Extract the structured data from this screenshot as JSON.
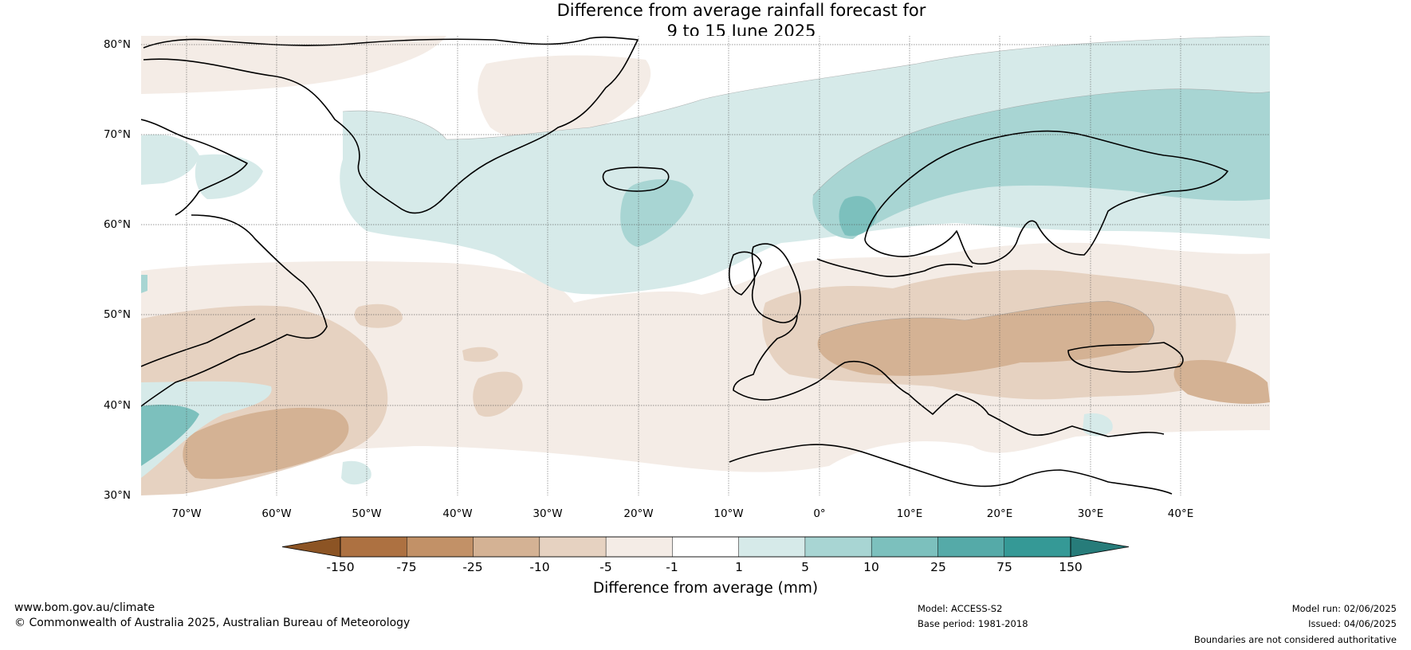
{
  "title": {
    "line1": "Difference from average rainfall forecast for",
    "line2": "9 to 15 June 2025"
  },
  "map": {
    "lat_labels": [
      "80°N",
      "70°N",
      "60°N",
      "50°N",
      "40°N",
      "30°N"
    ],
    "lon_labels": [
      "70°W",
      "60°W",
      "50°W",
      "40°W",
      "30°W",
      "20°W",
      "10°W",
      "0°",
      "10°E",
      "20°E",
      "30°E",
      "40°E"
    ]
  },
  "colorbar": {
    "ticks": [
      "-150",
      "-75",
      "-25",
      "-10",
      "-5",
      "-1",
      "1",
      "5",
      "10",
      "25",
      "75",
      "150"
    ],
    "colors": {
      "below_min": "#8c5424",
      "bins": [
        "#ad7141",
        "#c29167",
        "#d4b294",
        "#e6d2c1",
        "#f4ece6",
        "#ffffff",
        "#d6eae9",
        "#a8d5d3",
        "#7cc0bd",
        "#55aaa8",
        "#359996"
      ],
      "above_max": "#277c7a"
    },
    "label": "Difference from average (mm)"
  },
  "footer": {
    "website": "www.bom.gov.au/climate",
    "copyright": "© Commonwealth of Australia 2025, Australian Bureau of Meteorology",
    "model": "Model: ACCESS-S2",
    "base_period": "Base period: 1981-2018",
    "model_run": "Model run: 02/06/2025",
    "issued": "Issued: 04/06/2025",
    "disclaimer": "Boundaries are not considered authoritative"
  }
}
